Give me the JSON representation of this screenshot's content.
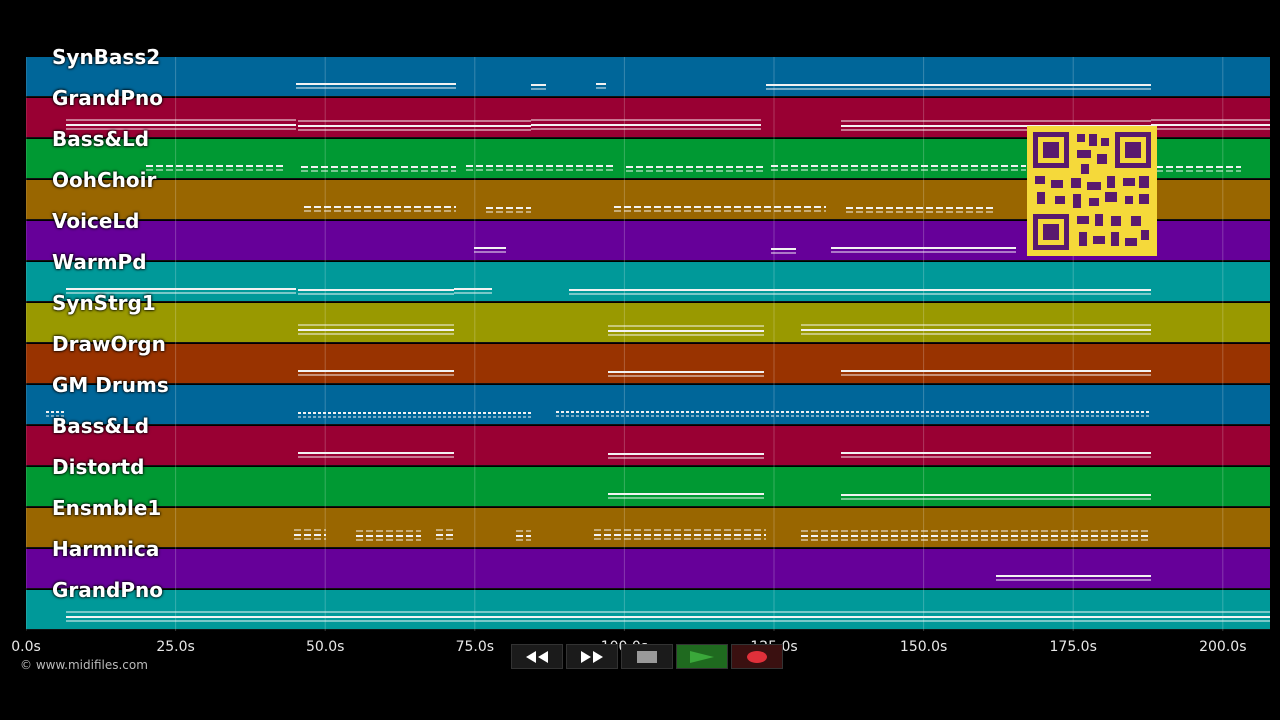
{
  "tracks": [
    {
      "name": "SynBass2",
      "color": "#006699"
    },
    {
      "name": "GrandPno",
      "color": "#990033"
    },
    {
      "name": "Bass&Ld",
      "color": "#009933"
    },
    {
      "name": "OohChoir",
      "color": "#996600"
    },
    {
      "name": "VoiceLd",
      "color": "#660099"
    },
    {
      "name": "WarmPd",
      "color": "#009999"
    },
    {
      "name": "SynStrg1",
      "color": "#999900"
    },
    {
      "name": "DrawOrgn",
      "color": "#993300"
    },
    {
      "name": "GM Drums",
      "color": "#006699"
    },
    {
      "name": "Bass&Ld",
      "color": "#990033"
    },
    {
      "name": "Distortd",
      "color": "#009933"
    },
    {
      "name": "Ensmble1",
      "color": "#996600"
    },
    {
      "name": "Harmnica",
      "color": "#660099"
    },
    {
      "name": "GrandPno",
      "color": "#009999"
    }
  ],
  "timeline": {
    "ticks": [
      "0.0s",
      "25.0s",
      "50.0s",
      "75.0s",
      "100.0s",
      "125.0s",
      "150.0s",
      "175.0s",
      "200.0s"
    ]
  },
  "copyright": "© www.midifiles.com",
  "transport": {
    "rewind_icon": "rewind-icon",
    "forward_icon": "fast-forward-icon",
    "stop_icon": "stop-icon",
    "play_icon": "play-icon",
    "record_icon": "record-icon",
    "play_color": "#3aa83a",
    "record_color": "#e0303a"
  },
  "qr_color": "#f5d93a"
}
